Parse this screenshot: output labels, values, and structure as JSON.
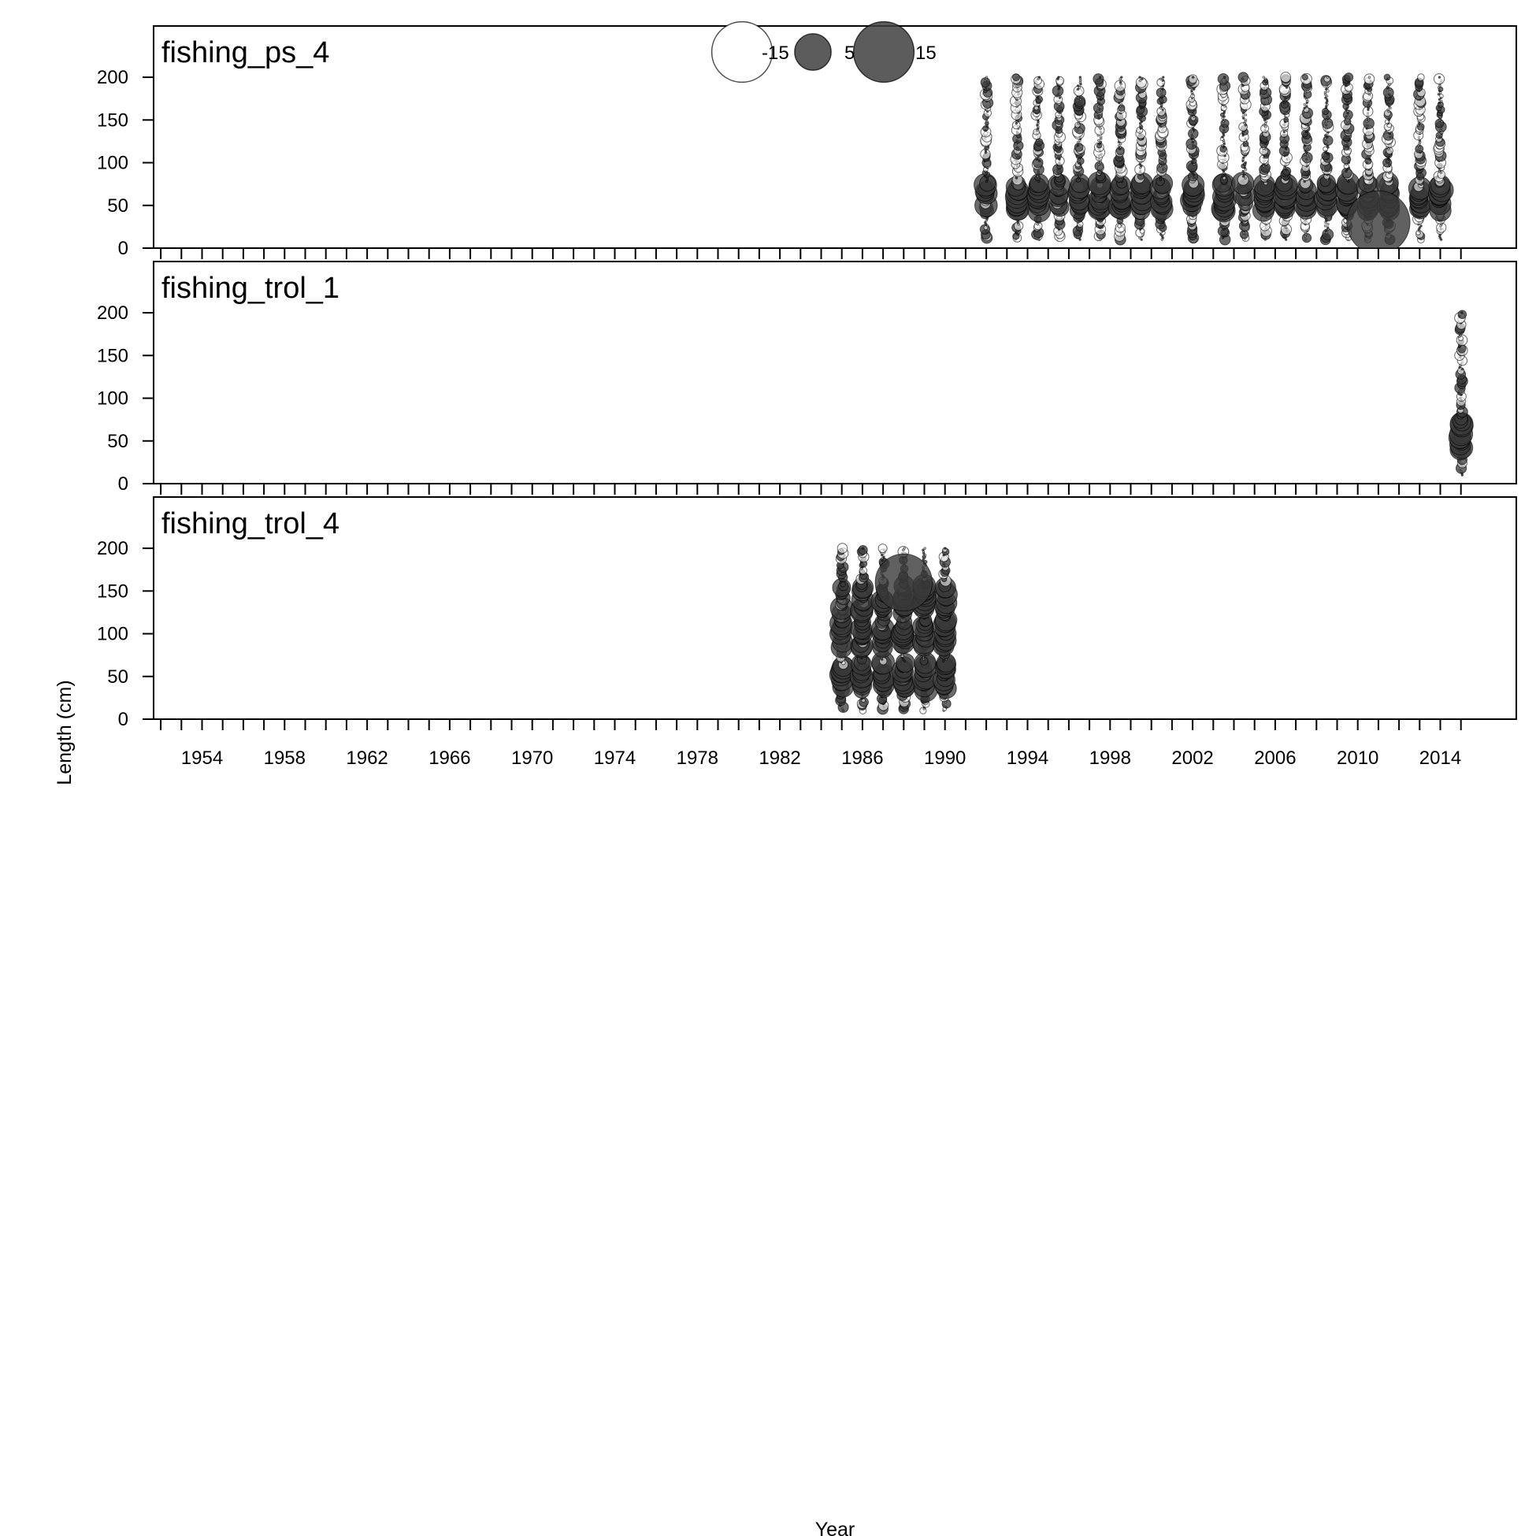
{
  "chart_data": {
    "type": "scatter",
    "subtype": "bubble",
    "xlabel": "Year",
    "ylabel": "Length (cm)",
    "xlim": [
      1951.5,
      2018.0
    ],
    "ylim": [
      0,
      260
    ],
    "x_ticks_major": [
      1952,
      1953,
      1954,
      1955,
      1956,
      1957,
      1958,
      1959,
      1960,
      1961,
      1962,
      1963,
      1964,
      1965,
      1966,
      1967,
      1968,
      1969,
      1970,
      1971,
      1972,
      1973,
      1974,
      1975,
      1976,
      1977,
      1978,
      1979,
      1980,
      1981,
      1982,
      1983,
      1984,
      1985,
      1986,
      1987,
      1988,
      1989,
      1990,
      1991,
      1992,
      1993,
      1994,
      1995,
      1996,
      1997,
      1998,
      1999,
      2000,
      2001,
      2002,
      2003,
      2004,
      2005,
      2006,
      2007,
      2008,
      2009,
      2010,
      2011,
      2012,
      2013,
      2014,
      2015
    ],
    "x_tick_labels": [
      "1954",
      "1958",
      "1962",
      "1966",
      "1970",
      "1974",
      "1978",
      "1982",
      "1986",
      "1990",
      "1994",
      "1998",
      "2002",
      "2006",
      "2010",
      "2014"
    ],
    "y_tick_labels": [
      "0",
      "50",
      "100",
      "150",
      "200"
    ],
    "grid": false,
    "legend": {
      "position": "top-center",
      "entries": [
        {
          "label": "-15",
          "value": -15,
          "fill": "#ffffff"
        },
        {
          "label": "5",
          "value": 5,
          "fill": "#404040"
        },
        {
          "label": "15",
          "value": 15,
          "fill": "#404040"
        }
      ]
    },
    "colors": {
      "positive": "#3a3a3a",
      "negative": "#ffffff",
      "outline": "#000000"
    },
    "panels": [
      {
        "title": "fishing_ps_4",
        "years": [
          1992,
          1993.5,
          1994.5,
          1995.5,
          1996.5,
          1997.5,
          1998.5,
          1999.5,
          2000.5,
          2002,
          2003.5,
          2004.5,
          2005.5,
          2006.5,
          2007.5,
          2008.5,
          2009.5,
          2010.5,
          2011.5,
          2013,
          2014
        ],
        "length_range": [
          10,
          200
        ],
        "dense_lengths": [
          50,
          60,
          70
        ],
        "largest_bubble": {
          "year": 2011,
          "length": 30,
          "value": 15
        }
      },
      {
        "title": "fishing_trol_1",
        "years": [
          2015
        ],
        "length_range": [
          10,
          200
        ],
        "dense_lengths": [
          45,
          50,
          55,
          60,
          65,
          70
        ]
      },
      {
        "title": "fishing_trol_4",
        "years": [
          1985,
          1986,
          1987,
          1988,
          1989,
          1990
        ],
        "length_range": [
          10,
          200
        ],
        "dense_lengths": [
          40,
          50,
          60,
          90,
          100,
          110,
          130,
          140,
          150
        ],
        "largest_bubble": {
          "year": 1988,
          "length": 160,
          "value": 12
        }
      }
    ]
  }
}
